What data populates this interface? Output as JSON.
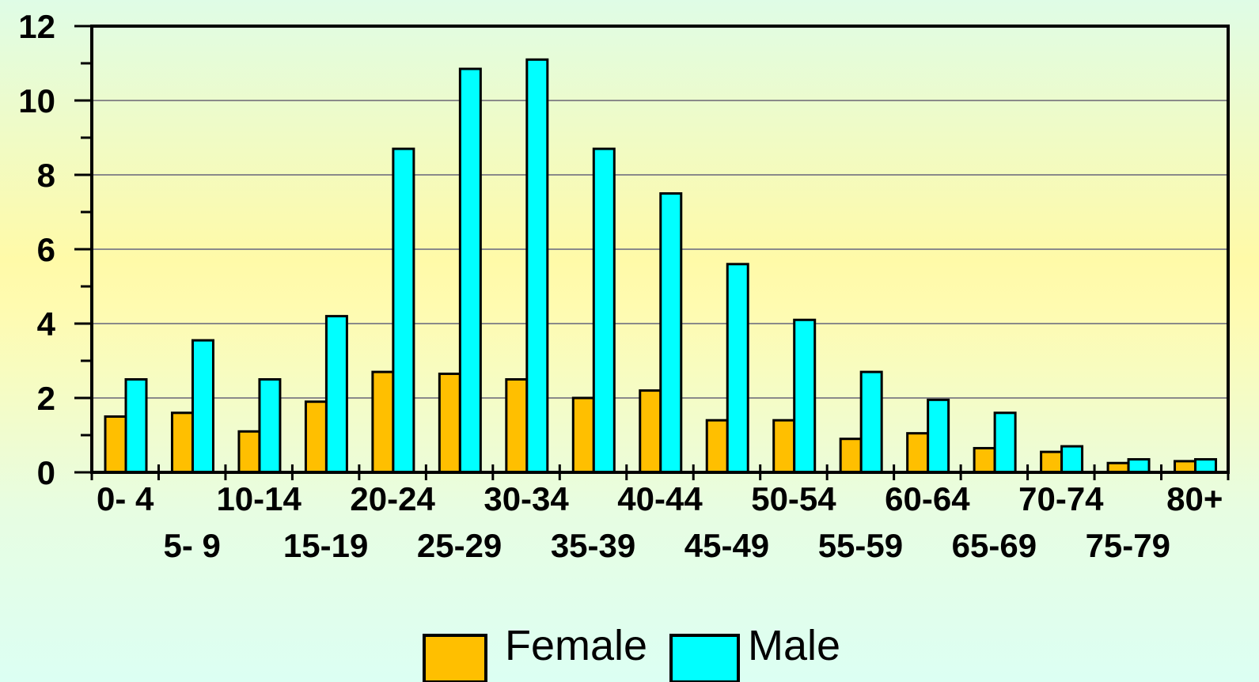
{
  "chart_data": {
    "type": "bar",
    "categories": [
      "0- 4",
      "5- 9",
      "10-14",
      "15-19",
      "20-24",
      "25-29",
      "30-34",
      "35-39",
      "40-44",
      "45-49",
      "50-54",
      "55-59",
      "60-64",
      "65-69",
      "70-74",
      "75-79",
      "80+"
    ],
    "series": [
      {
        "name": "Female",
        "color": "#ffbf00",
        "values": [
          1.5,
          1.6,
          1.1,
          1.9,
          2.7,
          2.65,
          2.5,
          2.0,
          2.2,
          1.4,
          1.4,
          0.9,
          1.05,
          0.65,
          0.55,
          0.25,
          0.3
        ]
      },
      {
        "name": "Male",
        "color": "#00ffff",
        "values": [
          2.5,
          3.55,
          2.5,
          4.2,
          8.7,
          10.85,
          11.1,
          8.7,
          7.5,
          5.6,
          4.1,
          2.7,
          1.95,
          1.6,
          0.7,
          0.35,
          0.35
        ]
      }
    ],
    "ylim": [
      0,
      12
    ],
    "yticks": [
      "0",
      "2",
      "4",
      "6",
      "8",
      "10",
      "12"
    ],
    "grid": true,
    "legend_position": "bottom",
    "title": "",
    "xlabel": "",
    "ylabel": ""
  }
}
